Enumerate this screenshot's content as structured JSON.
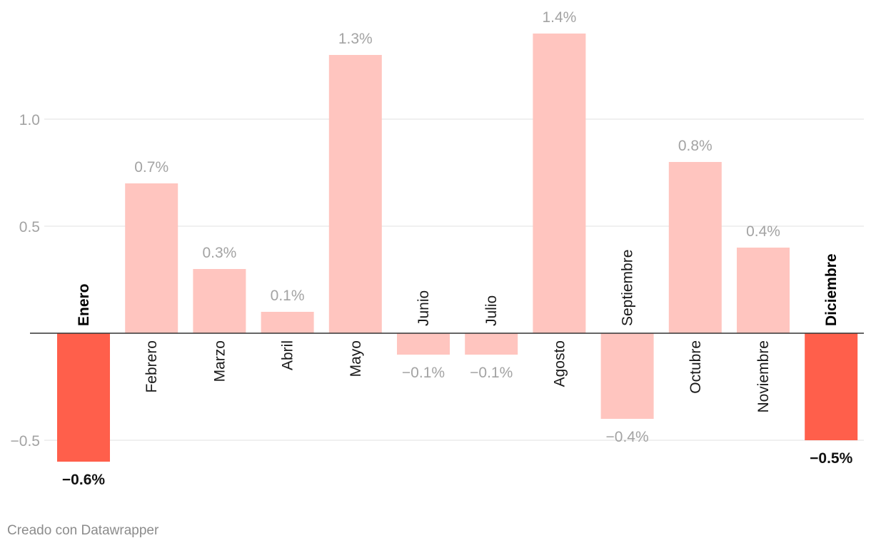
{
  "chart_data": {
    "type": "bar",
    "categories": [
      "Enero",
      "Febrero",
      "Marzo",
      "Abril",
      "Mayo",
      "Junio",
      "Julio",
      "Agosto",
      "Septiembre",
      "Octubre",
      "Noviembre",
      "Diciembre"
    ],
    "values": [
      -0.6,
      0.7,
      0.3,
      0.1,
      1.3,
      -0.1,
      -0.1,
      1.4,
      -0.4,
      0.8,
      0.4,
      -0.5
    ],
    "value_labels": [
      "−0.6%",
      "0.7%",
      "0.3%",
      "0.1%",
      "1.3%",
      "−0.1%",
      "−0.1%",
      "1.4%",
      "−0.4%",
      "0.8%",
      "0.4%",
      "−0.5%"
    ],
    "highlighted": [
      0,
      11
    ],
    "y_ticks": [
      -0.5,
      0.5,
      1.0
    ],
    "y_tick_labels": [
      "−0.5",
      "0.5",
      "1.0"
    ],
    "ylim": [
      -0.6,
      1.4
    ],
    "grid": true,
    "colors": {
      "base": "#ffc5bf",
      "highlight": "#ff5f4b",
      "grid": "#e0e0e0",
      "zero_line": "#333333"
    },
    "title": "",
    "xlabel": "",
    "ylabel": ""
  },
  "footer": {
    "credit": "Creado con Datawrapper"
  }
}
